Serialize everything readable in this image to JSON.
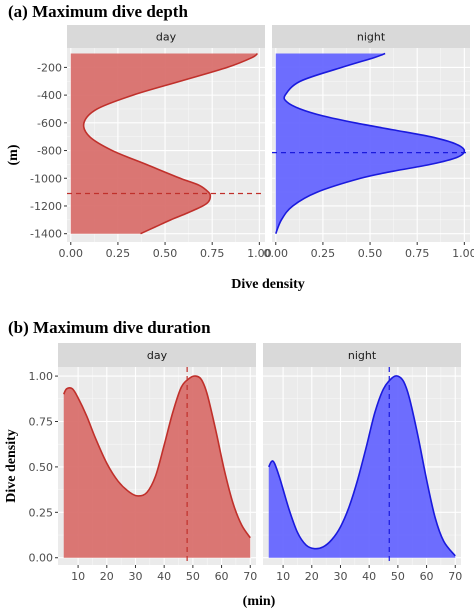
{
  "colors": {
    "panel_bg": "#ebebeb",
    "grid_major": "#ffffff",
    "strip_bg": "#d9d9d9",
    "day_line": "#c0302b",
    "day_fill": "#d9706d",
    "night_line": "#1a1add",
    "night_fill": "#6666ff"
  },
  "chart_data": [
    {
      "type": "area",
      "title": "(a) Maximum dive depth",
      "xlabel": "Dive density",
      "ylabel": "(m)",
      "orientation": "horizontal",
      "xlim": [
        -0.02,
        1.03
      ],
      "ylim": [
        -1460,
        -60
      ],
      "x_ticks": [
        0,
        0.25,
        0.5,
        0.75,
        1
      ],
      "x_tick_labels": [
        "0.00",
        "0.25",
        "0.50",
        "0.75",
        "1.00"
      ],
      "y_ticks": [
        -200,
        -400,
        -600,
        -800,
        -1000,
        -1200,
        -1400
      ],
      "y_tick_labels": [
        "-200",
        "-400",
        "-600",
        "-800",
        "-1000",
        "-1200",
        "-1400"
      ],
      "grid": true,
      "panels": [
        {
          "name": "day",
          "mean_line": -1110,
          "depth": [
            -100,
            -130,
            -200,
            -300,
            -400,
            -500,
            -600,
            -700,
            -800,
            -900,
            -1000,
            -1050,
            -1100,
            -1130,
            -1170,
            -1200,
            -1250,
            -1300,
            -1350,
            -1400
          ],
          "density": [
            0.99,
            0.96,
            0.83,
            0.58,
            0.33,
            0.14,
            0.07,
            0.1,
            0.22,
            0.4,
            0.58,
            0.68,
            0.73,
            0.74,
            0.73,
            0.7,
            0.62,
            0.53,
            0.45,
            0.37
          ]
        },
        {
          "name": "night",
          "mean_line": -815,
          "depth": [
            -100,
            -130,
            -200,
            -300,
            -400,
            -450,
            -500,
            -550,
            -600,
            -650,
            -700,
            -750,
            -800,
            -850,
            -900,
            -950,
            -1000,
            -1100,
            -1200,
            -1300,
            -1400
          ],
          "density": [
            0.58,
            0.52,
            0.35,
            0.13,
            0.05,
            0.06,
            0.13,
            0.25,
            0.42,
            0.62,
            0.82,
            0.95,
            1.0,
            0.96,
            0.82,
            0.62,
            0.45,
            0.22,
            0.09,
            0.03,
            0.0
          ]
        }
      ]
    },
    {
      "type": "area",
      "title": "(b) Maximum dive duration",
      "xlabel": "(min)",
      "ylabel": "Dive density",
      "orientation": "vertical",
      "xlim": [
        3,
        72
      ],
      "ylim": [
        -0.04,
        1.05
      ],
      "x_ticks": [
        10,
        20,
        30,
        40,
        50,
        60,
        70
      ],
      "x_tick_labels": [
        "10",
        "20",
        "30",
        "40",
        "50",
        "60",
        "70"
      ],
      "y_ticks": [
        0,
        0.25,
        0.5,
        0.75,
        1
      ],
      "y_tick_labels": [
        "0.00",
        "0.25",
        "0.50",
        "0.75",
        "1.00"
      ],
      "grid": true,
      "panels": [
        {
          "name": "day",
          "mean_line": 48,
          "x": [
            5,
            6,
            8,
            10,
            13,
            16,
            20,
            24,
            28,
            31,
            34,
            37,
            40,
            43,
            46,
            49,
            51,
            53,
            55,
            58,
            61,
            64,
            67,
            70
          ],
          "y": [
            0.9,
            0.93,
            0.93,
            0.88,
            0.78,
            0.66,
            0.52,
            0.42,
            0.36,
            0.34,
            0.36,
            0.45,
            0.62,
            0.8,
            0.94,
            0.99,
            1.0,
            0.98,
            0.9,
            0.7,
            0.48,
            0.3,
            0.18,
            0.11
          ]
        },
        {
          "name": "night",
          "mean_line": 47,
          "x": [
            5,
            6,
            7,
            9,
            12,
            15,
            18,
            21,
            24,
            27,
            30,
            33,
            36,
            39,
            42,
            45,
            48,
            50,
            52,
            54,
            57,
            60,
            63,
            66,
            70
          ],
          "y": [
            0.5,
            0.53,
            0.52,
            0.43,
            0.27,
            0.14,
            0.07,
            0.05,
            0.06,
            0.1,
            0.17,
            0.28,
            0.43,
            0.61,
            0.8,
            0.93,
            0.99,
            1.0,
            0.97,
            0.88,
            0.67,
            0.43,
            0.22,
            0.09,
            0.01
          ]
        }
      ]
    }
  ]
}
